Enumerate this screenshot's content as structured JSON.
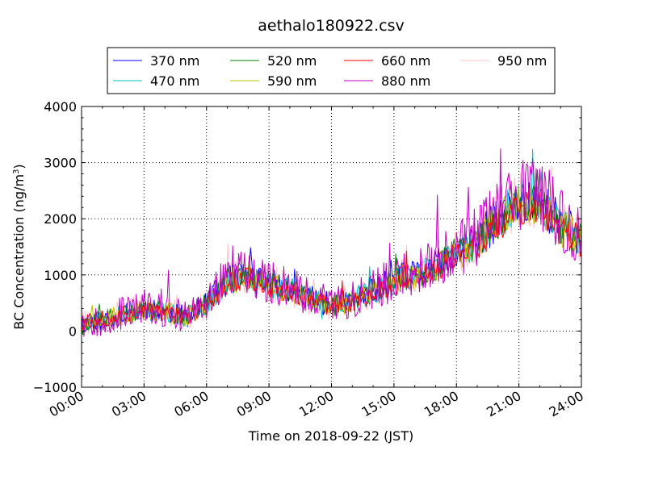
{
  "chart_data": {
    "type": "line",
    "title": "aethalo180922.csv",
    "xlabel": "Time on 2018-09-22 (JST)",
    "ylabel": "BC Concentration (ng/m³)",
    "ylabel_main": "BC Concentration (ng/m",
    "ylabel_sup": "3",
    "ylabel_end": ")",
    "xlim_hours": [
      0,
      24
    ],
    "ylim": [
      -1000,
      4000
    ],
    "x_tick_labels": [
      "00:00",
      "03:00",
      "06:00",
      "09:00",
      "12:00",
      "15:00",
      "18:00",
      "21:00",
      "24:00"
    ],
    "y_tick_labels": [
      "−1000",
      "0",
      "1000",
      "2000",
      "3000",
      "4000"
    ],
    "grid": true,
    "legend_position": "top-center",
    "legend_columns": 4,
    "trend_hours": [
      0,
      1,
      2,
      3,
      4,
      5,
      6,
      7,
      8,
      9,
      10,
      11,
      12,
      13,
      14,
      15,
      16,
      17,
      18,
      19,
      20,
      21,
      22,
      23,
      24
    ],
    "trend_values": [
      150,
      200,
      300,
      400,
      350,
      250,
      500,
      900,
      1000,
      850,
      750,
      600,
      450,
      550,
      700,
      900,
      1000,
      1150,
      1400,
      1600,
      2000,
      2300,
      2350,
      1900,
      1650
    ],
    "series": [
      {
        "name": "370 nm",
        "color": "#0000ff",
        "scale": 1.0,
        "noise": 280,
        "seed": 11
      },
      {
        "name": "470 nm",
        "color": "#00bfbf",
        "scale": 1.0,
        "noise": 260,
        "seed": 23
      },
      {
        "name": "520 nm",
        "color": "#008000",
        "scale": 0.98,
        "noise": 240,
        "seed": 37
      },
      {
        "name": "590 nm",
        "color": "#bfbf00",
        "scale": 0.97,
        "noise": 260,
        "seed": 41
      },
      {
        "name": "660 nm",
        "color": "#ff0000",
        "scale": 0.95,
        "noise": 220,
        "seed": 53
      },
      {
        "name": "880 nm",
        "color": "#bf00bf",
        "scale": 1.05,
        "noise": 420,
        "seed": 67
      },
      {
        "name": "950 nm",
        "color": "#ffc0cb",
        "scale": 1.0,
        "noise": 360,
        "seed": 79
      }
    ]
  }
}
